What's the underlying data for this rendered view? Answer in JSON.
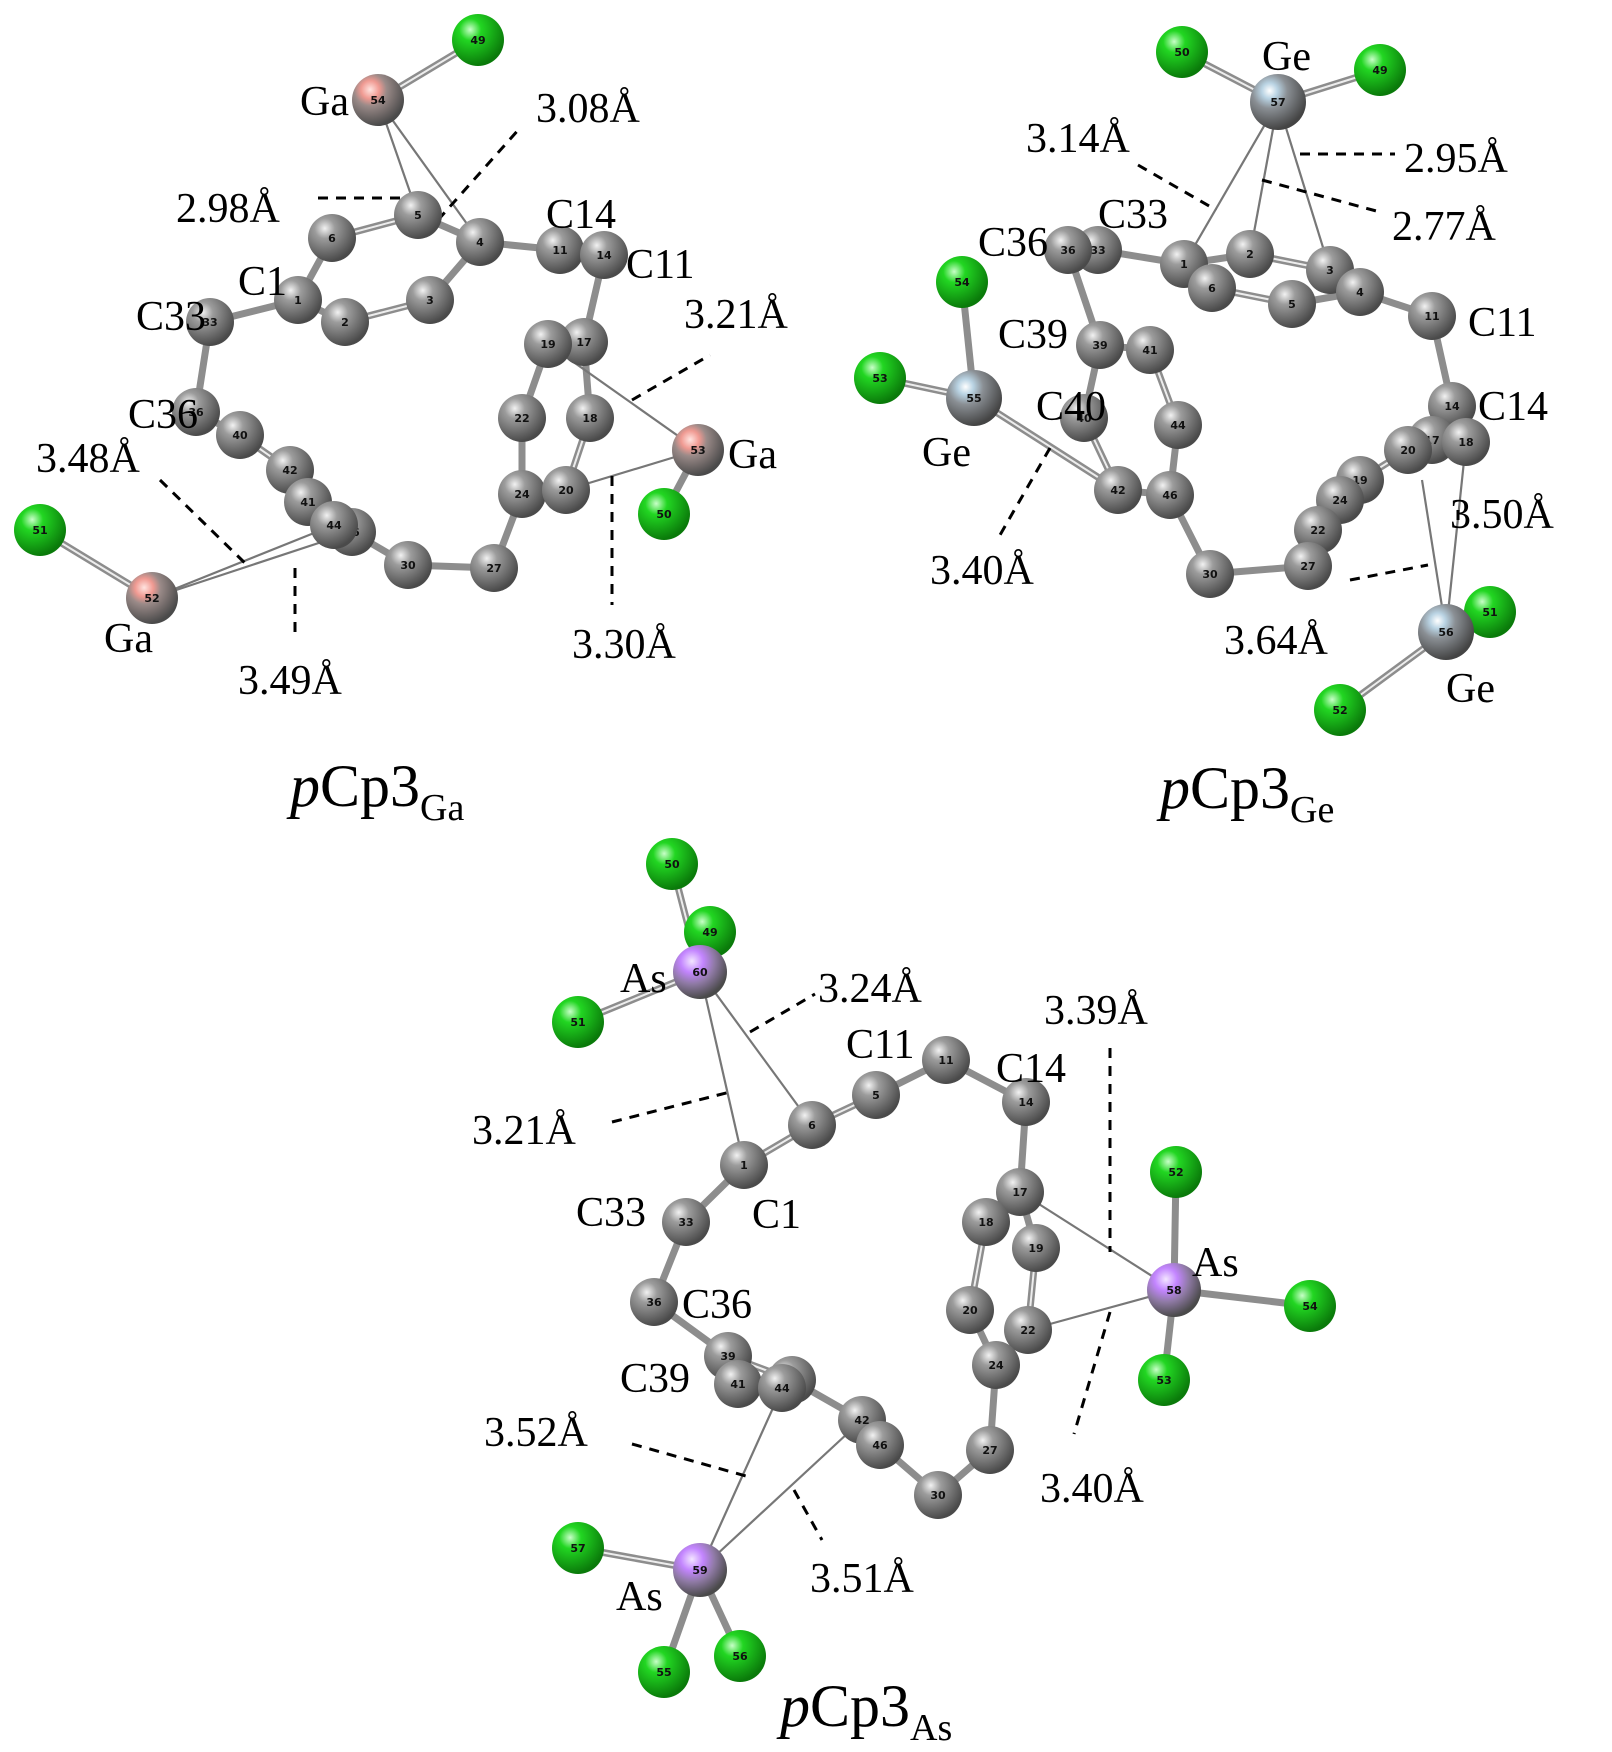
{
  "colors": {
    "carbon": "#7f7f7f",
    "carbon_highlight": "#e6e6e6",
    "chlorine": "#14c414",
    "chlorine_highlight": "#b8ffb8",
    "gallium": "#f2a29a",
    "germanium": "#a9c7d9",
    "arsenic": "#c385ff"
  },
  "panels": [
    {
      "id": "ga",
      "title_prefix": "p",
      "title_main": "Cp3",
      "title_sub": "Ga",
      "atoms": [
        {
          "n": "49",
          "e": "Cl"
        },
        {
          "n": "54",
          "e": "Ga"
        },
        {
          "n": "6",
          "e": "C"
        },
        {
          "n": "5",
          "e": "C"
        },
        {
          "n": "4",
          "e": "C"
        },
        {
          "n": "1",
          "e": "C"
        },
        {
          "n": "2",
          "e": "C"
        },
        {
          "n": "3",
          "e": "C"
        },
        {
          "n": "11",
          "e": "C"
        },
        {
          "n": "14",
          "e": "C"
        },
        {
          "n": "33",
          "e": "C"
        },
        {
          "n": "17",
          "e": "C"
        },
        {
          "n": "19",
          "e": "C"
        },
        {
          "n": "36",
          "e": "C"
        },
        {
          "n": "40",
          "e": "C"
        },
        {
          "n": "42",
          "e": "C"
        },
        {
          "n": "22",
          "e": "C"
        },
        {
          "n": "18",
          "e": "C"
        },
        {
          "n": "53",
          "e": "Ga"
        },
        {
          "n": "24",
          "e": "C"
        },
        {
          "n": "20",
          "e": "C"
        },
        {
          "n": "50",
          "e": "Cl"
        },
        {
          "n": "41",
          "e": "C"
        },
        {
          "n": "46",
          "e": "C"
        },
        {
          "n": "44",
          "e": "C"
        },
        {
          "n": "30",
          "e": "C"
        },
        {
          "n": "27",
          "e": "C"
        },
        {
          "n": "51",
          "e": "Cl"
        },
        {
          "n": "52",
          "e": "Ga"
        }
      ],
      "labels": [
        "Ga",
        "C1",
        "C14",
        "C11",
        "C33",
        "C36",
        "Ga",
        "Ga"
      ],
      "distances": [
        "3.08Å",
        "2.98Å",
        "3.21Å",
        "3.48Å",
        "3.49Å",
        "3.30Å"
      ]
    },
    {
      "id": "ge",
      "title_prefix": "p",
      "title_main": "Cp3",
      "title_sub": "Ge",
      "atoms": [
        {
          "n": "50",
          "e": "Cl"
        },
        {
          "n": "57",
          "e": "Ge"
        },
        {
          "n": "49",
          "e": "Cl"
        },
        {
          "n": "1",
          "e": "C"
        },
        {
          "n": "2",
          "e": "C"
        },
        {
          "n": "3",
          "e": "C"
        },
        {
          "n": "6",
          "e": "C"
        },
        {
          "n": "5",
          "e": "C"
        },
        {
          "n": "4",
          "e": "C"
        },
        {
          "n": "33",
          "e": "C"
        },
        {
          "n": "36",
          "e": "C"
        },
        {
          "n": "11",
          "e": "C"
        },
        {
          "n": "54",
          "e": "Cl"
        },
        {
          "n": "39",
          "e": "C"
        },
        {
          "n": "41",
          "e": "C"
        },
        {
          "n": "53",
          "e": "Cl"
        },
        {
          "n": "55",
          "e": "Ge"
        },
        {
          "n": "40",
          "e": "C"
        },
        {
          "n": "44",
          "e": "C"
        },
        {
          "n": "14",
          "e": "C"
        },
        {
          "n": "42",
          "e": "C"
        },
        {
          "n": "46",
          "e": "C"
        },
        {
          "n": "17",
          "e": "C"
        },
        {
          "n": "18",
          "e": "C"
        },
        {
          "n": "20",
          "e": "C"
        },
        {
          "n": "19",
          "e": "C"
        },
        {
          "n": "24",
          "e": "C"
        },
        {
          "n": "22",
          "e": "C"
        },
        {
          "n": "30",
          "e": "C"
        },
        {
          "n": "27",
          "e": "C"
        },
        {
          "n": "51",
          "e": "Cl"
        },
        {
          "n": "56",
          "e": "Ge"
        },
        {
          "n": "52",
          "e": "Cl"
        }
      ],
      "labels": [
        "Ge",
        "C33",
        "C36",
        "C39",
        "C40",
        "C11",
        "C14",
        "Ge",
        "Ge"
      ],
      "distances": [
        "3.14Å",
        "2.95Å",
        "2.77Å",
        "3.50Å",
        "3.40Å",
        "3.64Å"
      ]
    },
    {
      "id": "as",
      "title_prefix": "p",
      "title_main": "Cp3",
      "title_sub": "As",
      "atoms": [
        {
          "n": "50",
          "e": "Cl"
        },
        {
          "n": "49",
          "e": "Cl"
        },
        {
          "n": "60",
          "e": "As"
        },
        {
          "n": "51",
          "e": "Cl"
        },
        {
          "n": "11",
          "e": "C"
        },
        {
          "n": "5",
          "e": "C"
        },
        {
          "n": "14",
          "e": "C"
        },
        {
          "n": "6",
          "e": "C"
        },
        {
          "n": "1",
          "e": "C"
        },
        {
          "n": "33",
          "e": "C"
        },
        {
          "n": "52",
          "e": "Cl"
        },
        {
          "n": "17",
          "e": "C"
        },
        {
          "n": "18",
          "e": "C"
        },
        {
          "n": "19",
          "e": "C"
        },
        {
          "n": "58",
          "e": "As"
        },
        {
          "n": "54",
          "e": "Cl"
        },
        {
          "n": "36",
          "e": "C"
        },
        {
          "n": "20",
          "e": "C"
        },
        {
          "n": "22",
          "e": "C"
        },
        {
          "n": "53",
          "e": "Cl"
        },
        {
          "n": "39",
          "e": "C"
        },
        {
          "n": "41",
          "e": "C"
        },
        {
          "n": "40",
          "e": "C"
        },
        {
          "n": "24",
          "e": "C"
        },
        {
          "n": "42",
          "e": "C"
        },
        {
          "n": "44",
          "e": "C"
        },
        {
          "n": "46",
          "e": "C"
        },
        {
          "n": "27",
          "e": "C"
        },
        {
          "n": "30",
          "e": "C"
        },
        {
          "n": "57",
          "e": "Cl"
        },
        {
          "n": "59",
          "e": "As"
        },
        {
          "n": "55",
          "e": "Cl"
        },
        {
          "n": "56",
          "e": "Cl"
        }
      ],
      "labels": [
        "As",
        "C11",
        "C14",
        "C1",
        "C33",
        "C36",
        "C39",
        "As",
        "As"
      ],
      "distances": [
        "3.24Å",
        "3.39Å",
        "3.21Å",
        "3.52Å",
        "3.51Å",
        "3.40Å"
      ]
    }
  ]
}
